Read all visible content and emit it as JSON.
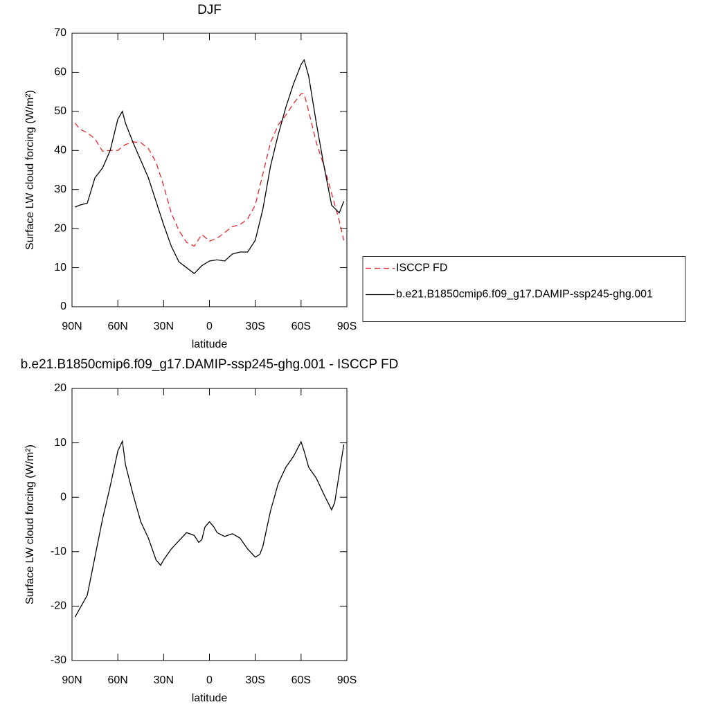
{
  "chart_data": [
    {
      "type": "line",
      "title": "DJF",
      "xlabel": "latitude",
      "ylabel": "Surface LW cloud forcing (W/m²)",
      "x": [
        88,
        85,
        80,
        75,
        70,
        65,
        60,
        57,
        55,
        50,
        45,
        40,
        35,
        30,
        25,
        20,
        15,
        10,
        5,
        0,
        -5,
        -10,
        -15,
        -20,
        -25,
        -30,
        -35,
        -40,
        -45,
        -50,
        -55,
        -60,
        -62,
        -65,
        -70,
        -75,
        -80,
        -85,
        -88
      ],
      "xlim": [
        90,
        -90
      ],
      "xticks": [
        {
          "value": 90,
          "label": "90N"
        },
        {
          "value": 60,
          "label": "60N"
        },
        {
          "value": 30,
          "label": "30N"
        },
        0,
        {
          "value": -30,
          "label": "30S"
        },
        {
          "value": -60,
          "label": "60S"
        },
        {
          "value": -90,
          "label": "90S"
        }
      ],
      "ylim": [
        0,
        70
      ],
      "yticks": [
        0,
        10,
        20,
        30,
        40,
        50,
        60,
        70
      ],
      "legend": "right",
      "series": [
        {
          "name": "ISCCP FD",
          "color": "#e8262b",
          "style": "dashed",
          "values": [
            47,
            45.5,
            44.5,
            43,
            39.8,
            40,
            40,
            41,
            41.5,
            42.2,
            42,
            40.5,
            37,
            31,
            24,
            19.5,
            16.5,
            15.5,
            18.5,
            16.8,
            17.5,
            19,
            20.5,
            21,
            22.5,
            26,
            34,
            42,
            46.5,
            49,
            52,
            54.5,
            54.5,
            50,
            42,
            36,
            29,
            22,
            17
          ]
        },
        {
          "name": "b.e21.B1850cmip6.f09_g17.DAMIP-ssp245-ghg.001",
          "color": "#000000",
          "style": "solid",
          "values": [
            25.5,
            26,
            26.5,
            33,
            35.5,
            40,
            48,
            50,
            47,
            42,
            37.5,
            33,
            27,
            21,
            15.5,
            11.5,
            10,
            8.5,
            10.5,
            11.7,
            12,
            11.7,
            13.5,
            14,
            14,
            17,
            25,
            36,
            44,
            51,
            57,
            62,
            63.2,
            59,
            47,
            36,
            26,
            24,
            27
          ]
        }
      ]
    },
    {
      "type": "line",
      "title": "b.e21.B1850cmip6.f09_g17.DAMIP-ssp245-ghg.001 - ISCCP FD",
      "xlabel": "latitude",
      "ylabel": "Surface LW cloud forcing (W/m²)",
      "x": [
        88,
        85,
        80,
        75,
        70,
        65,
        60,
        57,
        55,
        50,
        45,
        40,
        35,
        32,
        30,
        25,
        20,
        15,
        10,
        7,
        5,
        3,
        0,
        -3,
        -5,
        -10,
        -15,
        -20,
        -25,
        -30,
        -33,
        -35,
        -40,
        -45,
        -50,
        -55,
        -60,
        -62,
        -65,
        -70,
        -75,
        -80,
        -82,
        -88
      ],
      "xlim": [
        90,
        -90
      ],
      "xticks": [
        {
          "value": 90,
          "label": "90N"
        },
        {
          "value": 60,
          "label": "60N"
        },
        {
          "value": 30,
          "label": "30N"
        },
        0,
        {
          "value": -30,
          "label": "30S"
        },
        {
          "value": -60,
          "label": "60S"
        },
        {
          "value": -90,
          "label": "90S"
        }
      ],
      "ylim": [
        -30,
        20
      ],
      "yticks": [
        -30,
        -20,
        -10,
        0,
        10,
        20
      ],
      "series": [
        {
          "color": "#000000",
          "style": "solid",
          "values": [
            -22,
            -20.5,
            -18,
            -11,
            -4,
            2,
            8.5,
            10.3,
            6,
            0.5,
            -4.5,
            -7.5,
            -11.5,
            -12.5,
            -11.5,
            -9.5,
            -8,
            -6.5,
            -7,
            -8.3,
            -7.8,
            -5.5,
            -4.5,
            -5.5,
            -6.5,
            -7.2,
            -6.7,
            -7.5,
            -9.5,
            -11,
            -10.5,
            -9,
            -2.5,
            2.5,
            5.5,
            7.5,
            10.2,
            8.5,
            5.5,
            3.5,
            0.5,
            -2.3,
            -1,
            9.7
          ]
        }
      ]
    }
  ]
}
